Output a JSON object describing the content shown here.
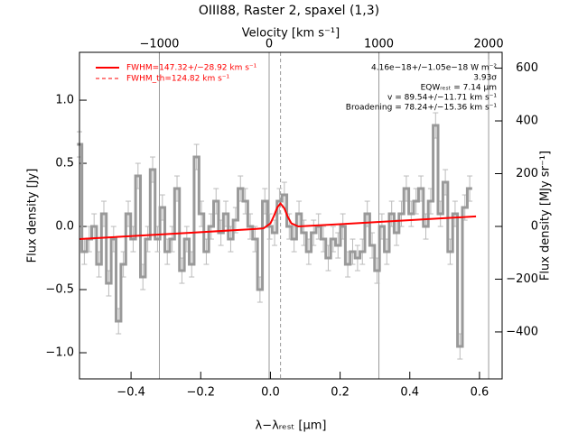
{
  "chart_data": {
    "type": "step",
    "title": "OIII88, Raster 2, spaxel (1,3)",
    "xlabel": "λ−λᵣₑₛₜ [μm]",
    "ylabel": "Flux density [Jy]",
    "y2label": "Flux density [MJy sr⁻¹]",
    "x2label": "Velocity [km s⁻¹]",
    "xlim": [
      -0.548,
      0.665
    ],
    "xticks": [
      {
        "value": -0.4,
        "label": "−0.4"
      },
      {
        "value": -0.2,
        "label": "−0.2"
      },
      {
        "value": 0,
        "label": "0.0"
      },
      {
        "value": 0.2,
        "label": "0.2"
      },
      {
        "value": 0.4,
        "label": "0.4"
      },
      {
        "value": 0.6,
        "label": "0.6"
      }
    ],
    "ylim": [
      -1.207,
      1.379
    ],
    "yticks": [
      {
        "value": -1,
        "label": "−1.0"
      },
      {
        "value": -0.5,
        "label": "−0.5"
      },
      {
        "value": 0,
        "label": "0.0"
      },
      {
        "value": 0.5,
        "label": "0.5"
      },
      {
        "value": 1,
        "label": "1.0"
      }
    ],
    "y2lim": [
      -578,
      660
    ],
    "y2ticks": [
      {
        "value": -400,
        "label": "−400"
      },
      {
        "value": -200,
        "label": "−200"
      },
      0,
      200,
      400,
      600
    ],
    "x2lim": [
      -1728,
      2123
    ],
    "x2ticks": [
      {
        "value": -1000,
        "label": "−1000"
      },
      0,
      1000,
      2000
    ],
    "x2grid": true,
    "fit_center": 0.029,
    "series": [
      {
        "name": "spectrum",
        "color": "#999999",
        "error": 0.1,
        "x": [
          -0.548,
          -0.534,
          -0.52,
          -0.506,
          -0.492,
          -0.478,
          -0.464,
          -0.45,
          -0.436,
          -0.422,
          -0.408,
          -0.394,
          -0.38,
          -0.366,
          -0.352,
          -0.338,
          -0.324,
          -0.31,
          -0.296,
          -0.282,
          -0.268,
          -0.254,
          -0.24,
          -0.226,
          -0.212,
          -0.198,
          -0.184,
          -0.17,
          -0.156,
          -0.142,
          -0.128,
          -0.114,
          -0.1,
          -0.086,
          -0.072,
          -0.058,
          -0.044,
          -0.03,
          -0.016,
          -0.002,
          0.012,
          0.026,
          0.04,
          0.054,
          0.068,
          0.082,
          0.096,
          0.11,
          0.124,
          0.138,
          0.152,
          0.166,
          0.18,
          0.194,
          0.208,
          0.222,
          0.236,
          0.25,
          0.264,
          0.278,
          0.292,
          0.306,
          0.32,
          0.334,
          0.348,
          0.362,
          0.376,
          0.39,
          0.404,
          0.418,
          0.432,
          0.446,
          0.46,
          0.474,
          0.488,
          0.502,
          0.516,
          0.53,
          0.544,
          0.558,
          0.572
        ],
        "values": [
          0.65,
          -0.2,
          -0.1,
          0.0,
          -0.3,
          0.1,
          -0.45,
          -0.1,
          -0.75,
          -0.3,
          0.1,
          -0.1,
          0.4,
          -0.4,
          -0.1,
          0.45,
          -0.1,
          0.15,
          -0.2,
          -0.1,
          0.3,
          -0.35,
          -0.1,
          -0.3,
          0.55,
          0.1,
          -0.2,
          0.0,
          0.2,
          -0.05,
          0.1,
          -0.1,
          0.05,
          0.3,
          0.2,
          0.0,
          -0.1,
          -0.5,
          0.2,
          0.0,
          -0.05,
          0.2,
          0.25,
          0.0,
          -0.1,
          0.1,
          -0.05,
          -0.2,
          -0.05,
          0.0,
          -0.1,
          -0.25,
          -0.1,
          -0.15,
          0.0,
          -0.3,
          -0.2,
          -0.25,
          -0.2,
          0.1,
          -0.15,
          -0.35,
          0.0,
          -0.2,
          0.1,
          -0.05,
          0.1,
          0.3,
          0.1,
          0.2,
          0.3,
          0.0,
          0.2,
          0.8,
          0.1,
          0.35,
          -0.2,
          0.1,
          -0.95,
          0.15,
          0.3
        ]
      },
      {
        "name": "FWHM=147.32+/−28.92 km s⁻¹",
        "color": "#ff0000",
        "x": [
          -0.548,
          -0.2,
          -0.05,
          -0.02,
          0.0,
          0.01,
          0.02,
          0.029,
          0.04,
          0.05,
          0.06,
          0.08,
          0.2,
          0.59
        ],
        "values": [
          -0.1,
          -0.045,
          -0.021,
          -0.015,
          0.024,
          0.083,
          0.152,
          0.182,
          0.143,
          0.075,
          0.025,
          0.0,
          0.018,
          0.08
        ]
      }
    ],
    "legend_extra": "FWHM_th=124.82 km s⁻¹",
    "annotations": [
      "4.16e−18+/−1.05e−18 W m⁻²",
      "3.93σ",
      "EQWᵣₑₛₜ = 7.14 μm",
      "v = 89.54+/−11.71 km s⁻¹",
      "Broadening = 78.24+/−15.36 km s⁻¹"
    ]
  }
}
